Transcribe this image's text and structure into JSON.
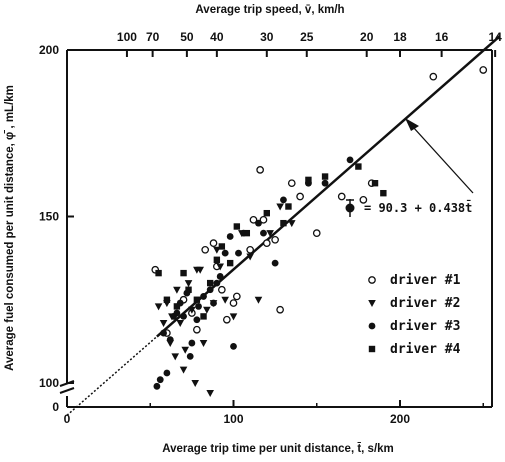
{
  "chart_data": {
    "type": "scatter",
    "title": "",
    "xlabel": "Average trip time per unit distance, t̄, s/km",
    "ylabel": "Average fuel consumed per unit distance, φ̄ , mL/km",
    "top_axis_label": "Average trip speed, v̄, km/h",
    "xlim": [
      -10,
      265
    ],
    "ylim": [
      75,
      200
    ],
    "y_axis_break": true,
    "x_ticks": [
      "0",
      "100",
      "200"
    ],
    "y_ticks": [
      "0",
      "100",
      "150",
      "200"
    ],
    "top_ticks": [
      "100",
      "70",
      "50",
      "40",
      "30",
      "25",
      "20",
      "18",
      "16",
      "14"
    ],
    "top_tick_speeds": [
      100,
      70,
      50,
      40,
      30,
      25,
      20,
      18,
      16,
      14
    ],
    "grid": false,
    "legend_position": "bottom-right",
    "fit_equation": {
      "symbol": "φ̄",
      "text": "= 90.3 + 0.438t̄",
      "intercept": 90.3,
      "slope": 0.438,
      "x_range": [
        54,
        260
      ],
      "extrapolated_x_range": [
        0,
        54
      ]
    },
    "series": [
      {
        "name": "driver  #1",
        "marker": "open-circle",
        "points": [
          [
            53,
            134
          ],
          [
            60,
            115
          ],
          [
            70,
            125
          ],
          [
            75,
            121
          ],
          [
            78,
            116
          ],
          [
            83,
            140
          ],
          [
            88,
            142
          ],
          [
            90,
            135
          ],
          [
            93,
            128
          ],
          [
            96,
            119
          ],
          [
            100,
            124
          ],
          [
            102,
            126
          ],
          [
            110,
            140
          ],
          [
            112,
            149
          ],
          [
            116,
            164
          ],
          [
            118,
            149
          ],
          [
            120,
            142
          ],
          [
            125,
            143
          ],
          [
            128,
            122
          ],
          [
            135,
            160
          ],
          [
            140,
            156
          ],
          [
            150,
            145
          ],
          [
            165,
            156
          ],
          [
            178,
            155
          ],
          [
            183,
            160
          ],
          [
            220,
            192
          ],
          [
            250,
            194
          ]
        ]
      },
      {
        "name": "driver  #2",
        "marker": "filled-triangle",
        "points": [
          [
            55,
            123
          ],
          [
            58,
            118
          ],
          [
            60,
            124
          ],
          [
            62,
            112
          ],
          [
            63,
            120
          ],
          [
            65,
            108
          ],
          [
            66,
            128
          ],
          [
            68,
            118
          ],
          [
            70,
            104
          ],
          [
            71,
            110
          ],
          [
            73,
            130
          ],
          [
            75,
            122
          ],
          [
            77,
            100
          ],
          [
            78,
            134
          ],
          [
            80,
            134
          ],
          [
            82,
            112
          ],
          [
            84,
            122
          ],
          [
            86,
            97
          ],
          [
            88,
            124
          ],
          [
            90,
            140
          ],
          [
            92,
            135
          ],
          [
            95,
            125
          ],
          [
            100,
            120
          ],
          [
            105,
            145
          ],
          [
            110,
            138
          ],
          [
            115,
            125
          ],
          [
            122,
            145
          ],
          [
            128,
            153
          ],
          [
            135,
            148
          ]
        ]
      },
      {
        "name": "driver  #3",
        "marker": "filled-circle",
        "points": [
          [
            54,
            99
          ],
          [
            56,
            101
          ],
          [
            58,
            115
          ],
          [
            60,
            103
          ],
          [
            62,
            113
          ],
          [
            64,
            120
          ],
          [
            66,
            121
          ],
          [
            68,
            124
          ],
          [
            70,
            120
          ],
          [
            72,
            127
          ],
          [
            74,
            108
          ],
          [
            75,
            112
          ],
          [
            78,
            119
          ],
          [
            79,
            123
          ],
          [
            82,
            126
          ],
          [
            86,
            128
          ],
          [
            88,
            124
          ],
          [
            90,
            130
          ],
          [
            92,
            132
          ],
          [
            95,
            139
          ],
          [
            98,
            144
          ],
          [
            100,
            111
          ],
          [
            103,
            139
          ],
          [
            106,
            145
          ],
          [
            115,
            148
          ],
          [
            118,
            145
          ],
          [
            125,
            136
          ],
          [
            130,
            155
          ],
          [
            145,
            160
          ],
          [
            155,
            160
          ],
          [
            170,
            167
          ]
        ]
      },
      {
        "name": "driver  #4",
        "marker": "filled-square",
        "points": [
          [
            55,
            133
          ],
          [
            60,
            125
          ],
          [
            66,
            123
          ],
          [
            70,
            133
          ],
          [
            73,
            128
          ],
          [
            78,
            125
          ],
          [
            82,
            120
          ],
          [
            86,
            130
          ],
          [
            90,
            137
          ],
          [
            93,
            141
          ],
          [
            98,
            136
          ],
          [
            102,
            147
          ],
          [
            108,
            145
          ],
          [
            120,
            151
          ],
          [
            130,
            148
          ],
          [
            133,
            153
          ],
          [
            145,
            161
          ],
          [
            155,
            162
          ],
          [
            175,
            165
          ],
          [
            185,
            160
          ],
          [
            190,
            157
          ]
        ]
      }
    ]
  }
}
